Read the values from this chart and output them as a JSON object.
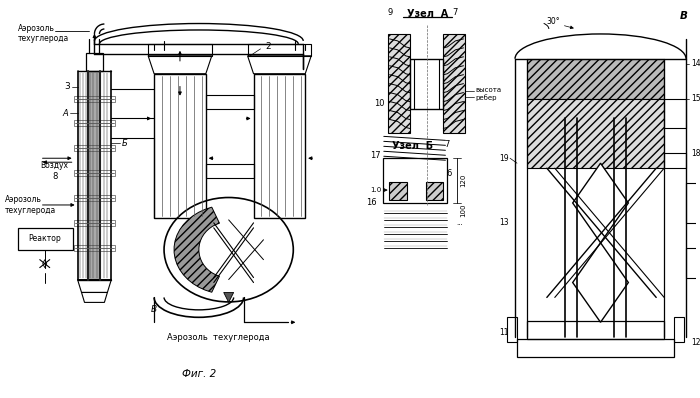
{
  "title": "Фиг. 2",
  "background_color": "#ffffff",
  "line_color": "#000000",
  "labels": {
    "aerosol_top": "Аэрозоль\nтехуглерода",
    "aerosol_left": "Аэрозоль\nтехуглерода",
    "vozduh": "Воздух",
    "reactor": "Реактор",
    "aerosol_bottom": "Аэрозоль  техуглерода",
    "uzel_a": "Узел  А",
    "uzel_b": "Узел  Б",
    "vysota_reber": "высота\nребер",
    "angle_label": "30°",
    "B_label": "В"
  },
  "nums": [
    "2",
    "3",
    "6",
    "7",
    "7",
    "8",
    "9",
    "10",
    "11",
    "12",
    "13",
    "14",
    "15",
    "16",
    "17",
    "18",
    "19",
    "А",
    "Б",
    "В"
  ]
}
